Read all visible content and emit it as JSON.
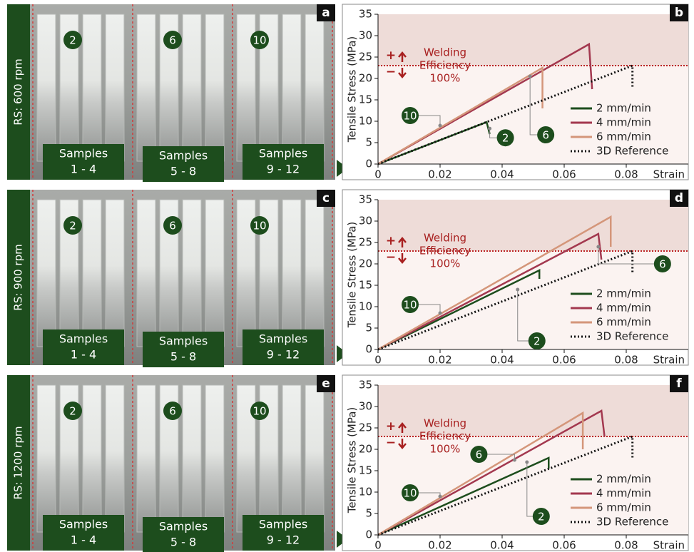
{
  "rows": [
    {
      "rpm_label": "RS: 600 rpm",
      "panel": "a",
      "speeds": [
        "2",
        "6",
        "10"
      ],
      "samples": [
        [
          "Samples",
          "1 - 4"
        ],
        [
          "Samples",
          "5 - 8"
        ],
        [
          "Samples",
          "9 - 12"
        ]
      ]
    },
    {
      "rpm_label": "RS: 900 rpm",
      "panel": "c",
      "speeds": [
        "2",
        "6",
        "10"
      ],
      "samples": [
        [
          "Samples",
          "1 - 4"
        ],
        [
          "Samples",
          "5 - 8"
        ],
        [
          "Samples",
          "9 - 12"
        ]
      ]
    },
    {
      "rpm_label": "RS: 1200 rpm",
      "panel": "e",
      "speeds": [
        "2",
        "6",
        "10"
      ],
      "samples": [
        [
          "Samples",
          "1 - 4"
        ],
        [
          "Samples",
          "5 - 8"
        ],
        [
          "Samples",
          "9 - 12"
        ]
      ]
    }
  ],
  "chart_data": [
    {
      "type": "line",
      "panel": "b",
      "ylabel": "Tensile Stress (MPa)",
      "xlabel": "Strain",
      "xlim": [
        0,
        0.1
      ],
      "ylim": [
        0,
        35
      ],
      "xticks": [
        0,
        0.02,
        0.04,
        0.06,
        0.08
      ],
      "yticks": [
        0,
        5,
        10,
        15,
        20,
        25,
        30,
        35
      ],
      "reference": {
        "value": 23,
        "label": [
          "Welding",
          "Efficiency",
          "100%"
        ],
        "signs": [
          "+",
          "−"
        ]
      },
      "series": [
        {
          "name": "2 mm/min",
          "color": "#1d4d1d",
          "dash": false,
          "x": [
            0,
            0.035,
            0.036
          ],
          "values": [
            0,
            9.8,
            7
          ]
        },
        {
          "name": "4 mm/min",
          "color": "#a3384f",
          "dash": false,
          "x": [
            0,
            0.068,
            0.069
          ],
          "values": [
            0,
            28,
            17.5
          ]
        },
        {
          "name": "6 mm/min",
          "color": "#d4967a",
          "dash": false,
          "x": [
            0,
            0.053,
            0.053
          ],
          "values": [
            0,
            22.5,
            13
          ]
        },
        {
          "name": "3D Reference",
          "color": "#111111",
          "dash": true,
          "x": [
            0,
            0.082,
            0.082
          ],
          "values": [
            0,
            23,
            18
          ]
        }
      ],
      "annotations": [
        {
          "label": "10",
          "x": 0.02,
          "y": 9
        },
        {
          "label": "2",
          "x": 0.036,
          "y": 8.3
        },
        {
          "label": "6",
          "x": 0.049,
          "y": 20.5
        }
      ]
    },
    {
      "type": "line",
      "panel": "d",
      "ylabel": "Tensile Stress (MPa)",
      "xlabel": "Strain",
      "xlim": [
        0,
        0.1
      ],
      "ylim": [
        0,
        35
      ],
      "xticks": [
        0,
        0.02,
        0.04,
        0.06,
        0.08
      ],
      "yticks": [
        0,
        5,
        10,
        15,
        20,
        25,
        30,
        35
      ],
      "reference": {
        "value": 23,
        "label": [
          "Welding",
          "Efficiency",
          "100%"
        ],
        "signs": [
          "+",
          "−"
        ]
      },
      "series": [
        {
          "name": "2 mm/min",
          "color": "#1d4d1d",
          "dash": false,
          "x": [
            0,
            0.052,
            0.052
          ],
          "values": [
            0,
            18.5,
            16.5
          ]
        },
        {
          "name": "4 mm/min",
          "color": "#a3384f",
          "dash": false,
          "x": [
            0,
            0.071,
            0.072
          ],
          "values": [
            0,
            27,
            21
          ]
        },
        {
          "name": "6 mm/min",
          "color": "#d4967a",
          "dash": false,
          "x": [
            0,
            0.075,
            0.075
          ],
          "values": [
            0,
            31,
            24
          ]
        },
        {
          "name": "3D Reference",
          "color": "#111111",
          "dash": true,
          "x": [
            0,
            0.082,
            0.082
          ],
          "values": [
            0,
            23,
            18
          ]
        }
      ],
      "annotations": [
        {
          "label": "10",
          "x": 0.02,
          "y": 8.5
        },
        {
          "label": "2",
          "x": 0.045,
          "y": 14
        },
        {
          "label": "6",
          "x": 0.071,
          "y": 24
        }
      ]
    },
    {
      "type": "line",
      "panel": "f",
      "ylabel": "Tensile Stress (MPa)",
      "xlabel": "Strain",
      "xlim": [
        0,
        0.1
      ],
      "ylim": [
        0,
        35
      ],
      "xticks": [
        0,
        0.02,
        0.04,
        0.06,
        0.08
      ],
      "yticks": [
        0,
        5,
        10,
        15,
        20,
        25,
        30,
        35
      ],
      "reference": {
        "value": 23,
        "label": [
          "Welding",
          "Efficiency",
          "100%"
        ],
        "signs": [
          "+",
          "−"
        ]
      },
      "series": [
        {
          "name": "2 mm/min",
          "color": "#1d4d1d",
          "dash": false,
          "x": [
            0,
            0.055,
            0.055
          ],
          "values": [
            0,
            18,
            15.5
          ]
        },
        {
          "name": "4 mm/min",
          "color": "#a3384f",
          "dash": false,
          "x": [
            0,
            0.072,
            0.073
          ],
          "values": [
            0,
            29,
            23
          ]
        },
        {
          "name": "6 mm/min",
          "color": "#d4967a",
          "dash": false,
          "x": [
            0,
            0.066,
            0.066
          ],
          "values": [
            0,
            28.5,
            20
          ]
        },
        {
          "name": "3D Reference",
          "color": "#111111",
          "dash": true,
          "x": [
            0,
            0.082,
            0.082
          ],
          "values": [
            0,
            23,
            18
          ]
        }
      ],
      "annotations": [
        {
          "label": "10",
          "x": 0.02,
          "y": 9
        },
        {
          "label": "6",
          "x": 0.044,
          "y": 17.5
        },
        {
          "label": "2",
          "x": 0.048,
          "y": 17
        }
      ]
    }
  ]
}
